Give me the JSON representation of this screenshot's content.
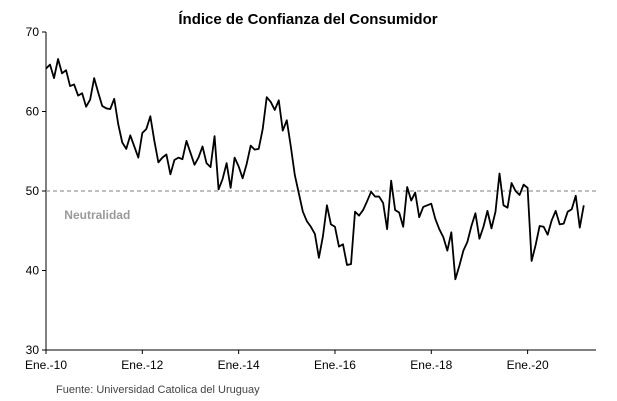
{
  "chart_data": {
    "type": "line",
    "title": "Índice de Confianza del Consumidor",
    "source": "Fuente: Universidad Catolica del Uruguay",
    "reference_line": {
      "value": 50,
      "label": "Neutralidad"
    },
    "ylim": [
      30,
      70
    ],
    "yticks": [
      30,
      40,
      50,
      60,
      70
    ],
    "xlim": [
      2010.0,
      2021.42
    ],
    "xticks": [
      {
        "x": 2010,
        "label": "Ene.-10"
      },
      {
        "x": 2012,
        "label": "Ene.-12"
      },
      {
        "x": 2014,
        "label": "Ene.-14"
      },
      {
        "x": 2016,
        "label": "Ene.-16"
      },
      {
        "x": 2018,
        "label": "Ene.-18"
      },
      {
        "x": 2020,
        "label": "Ene.-20"
      }
    ],
    "series": [
      {
        "name": "Índice de Confianza del Consumidor",
        "color": "#000000",
        "x_start": 2010.0,
        "step": 0.08333,
        "values": [
          65.4,
          65.9,
          64.2,
          66.6,
          64.8,
          65.2,
          63.2,
          63.4,
          62.0,
          62.3,
          60.6,
          61.5,
          64.2,
          62.4,
          60.7,
          60.4,
          60.3,
          61.6,
          58.4,
          56.1,
          55.3,
          57.0,
          55.6,
          54.2,
          57.3,
          57.8,
          59.4,
          56.3,
          53.6,
          54.2,
          54.6,
          52.1,
          53.9,
          54.2,
          54.0,
          56.3,
          54.8,
          53.3,
          54.2,
          55.6,
          53.5,
          53.0,
          56.9,
          50.2,
          51.5,
          53.5,
          50.4,
          54.2,
          53.1,
          51.6,
          53.4,
          55.7,
          55.2,
          55.3,
          57.8,
          61.8,
          61.2,
          60.2,
          61.4,
          57.6,
          58.9,
          55.6,
          52.0,
          49.7,
          47.4,
          46.2,
          45.5,
          44.6,
          41.6,
          44.3,
          48.2,
          45.8,
          45.5,
          43.0,
          43.3,
          40.7,
          40.8,
          47.4,
          46.9,
          47.6,
          48.7,
          49.9,
          49.3,
          49.3,
          48.5,
          45.2,
          51.3,
          47.6,
          47.3,
          45.5,
          50.5,
          48.8,
          49.8,
          46.7,
          48.0,
          48.2,
          48.4,
          46.5,
          45.2,
          44.2,
          42.5,
          44.8,
          38.9,
          40.6,
          42.5,
          43.6,
          45.6,
          47.2,
          44.0,
          45.5,
          47.5,
          45.3,
          47.4,
          52.2,
          48.2,
          47.9,
          51.0,
          50.0,
          49.5,
          50.8,
          50.4,
          41.2,
          43.2,
          45.6,
          45.5,
          44.5,
          46.3,
          47.5,
          45.8,
          45.9,
          47.4,
          47.7,
          49.4,
          45.4,
          48.2
        ]
      }
    ]
  }
}
